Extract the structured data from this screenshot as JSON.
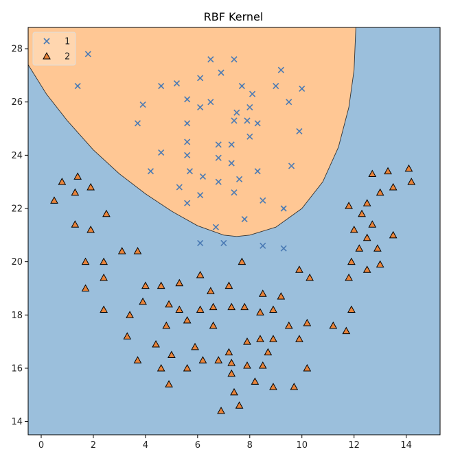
{
  "chart_data": {
    "type": "scatter",
    "title": "RBF Kernel",
    "xlabel": "",
    "ylabel": "",
    "xlim": [
      -0.5,
      15.3
    ],
    "ylim": [
      13.5,
      28.8
    ],
    "xticks": [
      0,
      2,
      4,
      6,
      8,
      10,
      12,
      14
    ],
    "yticks": [
      14,
      16,
      18,
      20,
      22,
      24,
      26,
      28
    ],
    "grid": false,
    "legend": {
      "placement": "top-left",
      "entries": [
        "1",
        "2"
      ]
    },
    "decision_regions": {
      "class_1_region_color": "#ffc794",
      "class_2_region_color": "#9bbfdc",
      "boundary_color": "#333333",
      "boundary": [
        [
          -0.5,
          27.4
        ],
        [
          0.2,
          26.3
        ],
        [
          1.0,
          25.3
        ],
        [
          2.0,
          24.2
        ],
        [
          3.0,
          23.3
        ],
        [
          4.0,
          22.55
        ],
        [
          5.0,
          21.9
        ],
        [
          6.0,
          21.35
        ],
        [
          7.0,
          21.0
        ],
        [
          7.5,
          20.95
        ],
        [
          8.0,
          21.0
        ],
        [
          9.0,
          21.3
        ],
        [
          10.0,
          22.0
        ],
        [
          10.8,
          23.0
        ],
        [
          11.4,
          24.3
        ],
        [
          11.8,
          25.8
        ],
        [
          12.0,
          27.2
        ],
        [
          12.07,
          28.8
        ]
      ]
    },
    "series": [
      {
        "name": "1",
        "marker": "x",
        "color": "#4a7ab4",
        "points": [
          [
            1.8,
            27.8
          ],
          [
            6.5,
            27.6
          ],
          [
            7.4,
            27.6
          ],
          [
            9.2,
            27.2
          ],
          [
            6.9,
            27.1
          ],
          [
            6.1,
            26.9
          ],
          [
            1.4,
            26.6
          ],
          [
            4.6,
            26.6
          ],
          [
            5.2,
            26.7
          ],
          [
            7.7,
            26.6
          ],
          [
            9.0,
            26.6
          ],
          [
            10.0,
            26.5
          ],
          [
            8.1,
            26.3
          ],
          [
            3.9,
            25.9
          ],
          [
            5.6,
            26.1
          ],
          [
            6.5,
            26.0
          ],
          [
            9.5,
            26.0
          ],
          [
            6.1,
            25.8
          ],
          [
            8.0,
            25.8
          ],
          [
            7.5,
            25.6
          ],
          [
            3.7,
            25.2
          ],
          [
            5.6,
            25.2
          ],
          [
            7.4,
            25.3
          ],
          [
            7.9,
            25.3
          ],
          [
            8.3,
            25.2
          ],
          [
            9.9,
            24.9
          ],
          [
            8.0,
            24.7
          ],
          [
            5.6,
            24.5
          ],
          [
            6.8,
            24.4
          ],
          [
            7.3,
            24.4
          ],
          [
            4.6,
            24.1
          ],
          [
            5.6,
            24.0
          ],
          [
            6.8,
            23.9
          ],
          [
            4.2,
            23.4
          ],
          [
            5.7,
            23.4
          ],
          [
            7.3,
            23.7
          ],
          [
            9.6,
            23.6
          ],
          [
            6.2,
            23.2
          ],
          [
            7.6,
            23.1
          ],
          [
            8.3,
            23.4
          ],
          [
            6.8,
            23.0
          ],
          [
            5.3,
            22.8
          ],
          [
            6.1,
            22.5
          ],
          [
            7.4,
            22.6
          ],
          [
            5.6,
            22.2
          ],
          [
            8.5,
            22.3
          ],
          [
            9.3,
            22.0
          ],
          [
            7.8,
            21.6
          ],
          [
            6.7,
            21.3
          ],
          [
            6.1,
            20.7
          ],
          [
            7.0,
            20.7
          ],
          [
            8.5,
            20.6
          ],
          [
            9.3,
            20.5
          ]
        ]
      },
      {
        "name": "2",
        "marker": "triangle",
        "color": "#e8833a",
        "points": [
          [
            0.5,
            22.3
          ],
          [
            0.8,
            23.0
          ],
          [
            1.4,
            23.2
          ],
          [
            1.3,
            22.6
          ],
          [
            1.9,
            22.8
          ],
          [
            1.3,
            21.4
          ],
          [
            1.9,
            21.2
          ],
          [
            2.5,
            21.8
          ],
          [
            1.7,
            20.0
          ],
          [
            2.4,
            20.0
          ],
          [
            3.1,
            20.4
          ],
          [
            3.7,
            20.4
          ],
          [
            1.7,
            19.0
          ],
          [
            2.4,
            19.4
          ],
          [
            4.0,
            19.1
          ],
          [
            4.6,
            19.1
          ],
          [
            5.3,
            19.2
          ],
          [
            6.1,
            19.5
          ],
          [
            2.4,
            18.2
          ],
          [
            3.9,
            18.5
          ],
          [
            4.9,
            18.4
          ],
          [
            5.3,
            18.2
          ],
          [
            6.1,
            18.2
          ],
          [
            6.5,
            18.9
          ],
          [
            6.6,
            18.3
          ],
          [
            7.2,
            19.1
          ],
          [
            7.3,
            18.3
          ],
          [
            7.8,
            18.3
          ],
          [
            3.4,
            18.0
          ],
          [
            4.8,
            17.6
          ],
          [
            5.6,
            17.8
          ],
          [
            6.6,
            17.6
          ],
          [
            7.7,
            20.0
          ],
          [
            8.5,
            18.8
          ],
          [
            9.2,
            18.7
          ],
          [
            8.4,
            18.1
          ],
          [
            8.9,
            18.2
          ],
          [
            9.5,
            17.6
          ],
          [
            9.9,
            19.7
          ],
          [
            10.3,
            19.4
          ],
          [
            3.3,
            17.2
          ],
          [
            4.4,
            16.9
          ],
          [
            5.0,
            16.5
          ],
          [
            5.9,
            16.8
          ],
          [
            6.2,
            16.3
          ],
          [
            7.2,
            16.6
          ],
          [
            7.9,
            17.0
          ],
          [
            8.4,
            17.1
          ],
          [
            8.9,
            17.1
          ],
          [
            9.9,
            17.1
          ],
          [
            10.2,
            17.7
          ],
          [
            3.7,
            16.3
          ],
          [
            4.6,
            16.0
          ],
          [
            5.6,
            16.0
          ],
          [
            6.8,
            16.3
          ],
          [
            7.3,
            16.2
          ],
          [
            7.9,
            16.1
          ],
          [
            8.5,
            16.1
          ],
          [
            8.7,
            16.6
          ],
          [
            10.2,
            16.0
          ],
          [
            4.9,
            15.4
          ],
          [
            7.3,
            15.8
          ],
          [
            8.2,
            15.5
          ],
          [
            8.9,
            15.3
          ],
          [
            9.7,
            15.3
          ],
          [
            7.4,
            15.1
          ],
          [
            7.6,
            14.6
          ],
          [
            6.9,
            14.4
          ],
          [
            11.2,
            17.6
          ],
          [
            11.7,
            17.4
          ],
          [
            11.9,
            18.2
          ],
          [
            11.8,
            19.4
          ],
          [
            11.9,
            20.0
          ],
          [
            12.2,
            20.5
          ],
          [
            12.0,
            21.2
          ],
          [
            12.5,
            19.7
          ],
          [
            13.0,
            19.9
          ],
          [
            12.9,
            20.5
          ],
          [
            12.5,
            20.9
          ],
          [
            12.3,
            21.8
          ],
          [
            12.7,
            21.4
          ],
          [
            11.8,
            22.1
          ],
          [
            12.5,
            22.2
          ],
          [
            13.0,
            22.6
          ],
          [
            13.5,
            22.8
          ],
          [
            13.5,
            21.0
          ],
          [
            12.7,
            23.3
          ],
          [
            13.3,
            23.4
          ],
          [
            14.1,
            23.5
          ],
          [
            14.2,
            23.0
          ]
        ]
      }
    ]
  }
}
